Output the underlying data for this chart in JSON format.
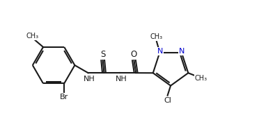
{
  "bg_color": "#ffffff",
  "line_color": "#1a1a1a",
  "heteroatom_color": "#0000cd",
  "bond_width": 1.5,
  "font_size": 8.5,
  "figsize": [
    3.72,
    1.76
  ],
  "dpi": 100,
  "xlim": [
    0,
    10
  ],
  "ylim": [
    0,
    4.73
  ]
}
